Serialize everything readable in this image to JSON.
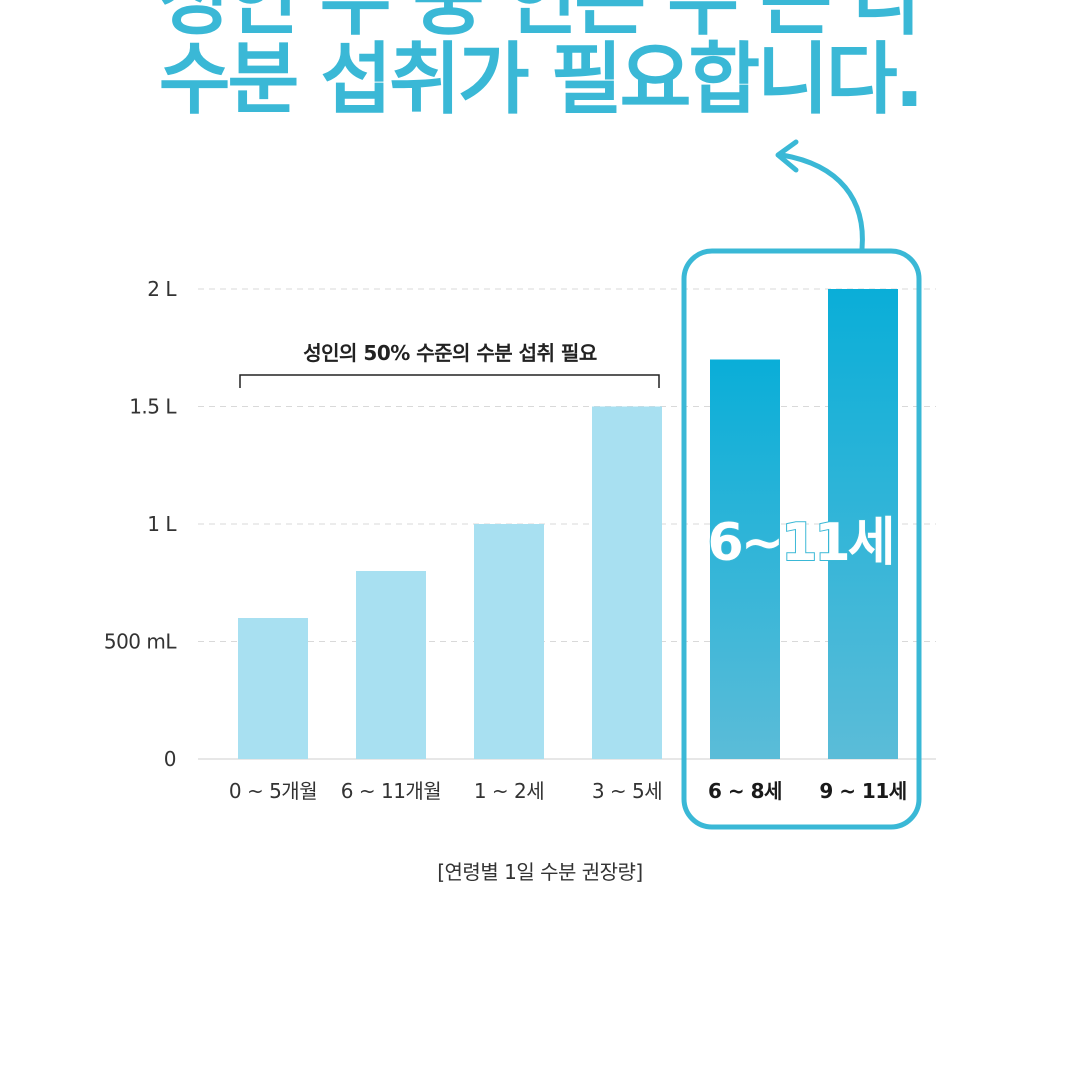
{
  "headline": {
    "line1": "성인 수 중 인은 수 는 다",
    "line2": "수분 섭취가 필요합니다."
  },
  "chart_data": {
    "type": "bar",
    "categories": [
      "0 ~ 5개월",
      "6 ~ 11개월",
      "1 ~ 2세",
      "3 ~ 5세",
      "6 ~ 8세",
      "9 ~ 11세"
    ],
    "values": [
      0.6,
      0.8,
      1.0,
      1.5,
      1.7,
      2.0
    ],
    "unit": "L",
    "ylim": [
      0,
      2
    ],
    "yticks": [
      {
        "value": 0,
        "label": "0"
      },
      {
        "value": 0.5,
        "label": "500 mL"
      },
      {
        "value": 1,
        "label": "1 L"
      },
      {
        "value": 1.5,
        "label": "1.5 L"
      },
      {
        "value": 2,
        "label": "2 L"
      }
    ],
    "highlight_indices": [
      4,
      5
    ],
    "annotation_bracket": "성인의 50% 수준의 수분 섭취 필요",
    "highlight_label": "6~11세",
    "caption": "[연령별 1일 수분 권장량]",
    "grid": "dashed horizontal",
    "colors": {
      "normal_bar": "#a8e0f1",
      "highlight_bar_top": "#0aaed8",
      "highlight_bar_bottom": "#5bbcd8",
      "accent": "#3ab8d6"
    }
  }
}
